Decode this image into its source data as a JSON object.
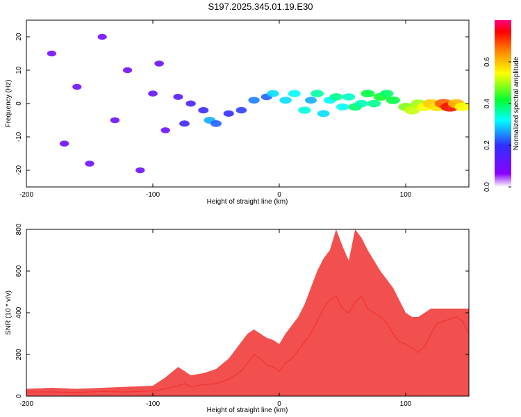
{
  "figure": {
    "title": "S197.2025.345.01.19.E30"
  },
  "colors": {
    "snr_line": "#f03030",
    "axis": "#000000"
  },
  "chart_data": [
    {
      "type": "heatmap",
      "title": "S197.2025.345.01.19.E30",
      "xlabel": "Height of straight line (km)",
      "ylabel": "Frequency (Hz)",
      "xlim": [
        -200,
        150
      ],
      "ylim": [
        -25,
        25
      ],
      "xticks": [
        -200,
        -100,
        0,
        100
      ],
      "yticks": [
        -20,
        -10,
        0,
        10,
        20
      ],
      "xtick_labels": [
        "-200",
        "-100",
        "0",
        "100"
      ],
      "ytick_labels": [
        "-20",
        "-10",
        "0",
        "10",
        "20"
      ],
      "colorbar": {
        "label": "Normalized spectral amplitude",
        "range": [
          0,
          0.8
        ],
        "ticks": [
          0,
          0.2,
          0.4,
          0.6
        ],
        "tick_labels": [
          "0.0",
          "0.2",
          "0.4",
          "0.6"
        ],
        "stops": [
          "#ffffff",
          "#8b00ff",
          "#3030ff",
          "#00ffff",
          "#00ff30",
          "#ffff00",
          "#ff8000",
          "#ff0000",
          "#ff0080"
        ]
      },
      "blobs": [
        {
          "x": -180,
          "y": 15,
          "v": 0.06
        },
        {
          "x": -170,
          "y": -12,
          "v": 0.07
        },
        {
          "x": -160,
          "y": 5,
          "v": 0.06
        },
        {
          "x": -150,
          "y": -18,
          "v": 0.07
        },
        {
          "x": -140,
          "y": 20,
          "v": 0.06
        },
        {
          "x": -130,
          "y": -5,
          "v": 0.07
        },
        {
          "x": -120,
          "y": 10,
          "v": 0.06
        },
        {
          "x": -110,
          "y": -20,
          "v": 0.07
        },
        {
          "x": -100,
          "y": 3,
          "v": 0.08
        },
        {
          "x": -95,
          "y": 12,
          "v": 0.08
        },
        {
          "x": -90,
          "y": -8,
          "v": 0.07
        },
        {
          "x": -80,
          "y": 2,
          "v": 0.1
        },
        {
          "x": -75,
          "y": -6,
          "v": 0.14
        },
        {
          "x": -70,
          "y": 0,
          "v": 0.12
        },
        {
          "x": -60,
          "y": -2,
          "v": 0.15
        },
        {
          "x": -55,
          "y": -5,
          "v": 0.25
        },
        {
          "x": -50,
          "y": -6,
          "v": 0.2
        },
        {
          "x": -40,
          "y": -3,
          "v": 0.16
        },
        {
          "x": -30,
          "y": -2,
          "v": 0.18
        },
        {
          "x": -20,
          "y": 1,
          "v": 0.22
        },
        {
          "x": -10,
          "y": 2,
          "v": 0.2
        },
        {
          "x": -5,
          "y": 3,
          "v": 0.28
        },
        {
          "x": 5,
          "y": 1,
          "v": 0.28
        },
        {
          "x": 12,
          "y": 3,
          "v": 0.3
        },
        {
          "x": 20,
          "y": -2,
          "v": 0.32
        },
        {
          "x": 25,
          "y": 1,
          "v": 0.25
        },
        {
          "x": 30,
          "y": 3,
          "v": 0.35
        },
        {
          "x": 35,
          "y": -3,
          "v": 0.28
        },
        {
          "x": 40,
          "y": 1,
          "v": 0.3
        },
        {
          "x": 45,
          "y": 2,
          "v": 0.36
        },
        {
          "x": 50,
          "y": -1,
          "v": 0.3
        },
        {
          "x": 55,
          "y": 2,
          "v": 0.33
        },
        {
          "x": 60,
          "y": -1,
          "v": 0.38
        },
        {
          "x": 65,
          "y": 0,
          "v": 0.34
        },
        {
          "x": 70,
          "y": 3,
          "v": 0.4
        },
        {
          "x": 75,
          "y": 0,
          "v": 0.36
        },
        {
          "x": 80,
          "y": 2,
          "v": 0.42
        },
        {
          "x": 85,
          "y": 3,
          "v": 0.38
        },
        {
          "x": 90,
          "y": 1,
          "v": 0.4
        },
        {
          "x": 100,
          "y": -1,
          "v": 0.48
        },
        {
          "x": 105,
          "y": -2,
          "v": 0.52
        },
        {
          "x": 110,
          "y": 0,
          "v": 0.5
        },
        {
          "x": 115,
          "y": -1,
          "v": 0.55
        },
        {
          "x": 120,
          "y": 0,
          "v": 0.6
        },
        {
          "x": 125,
          "y": -1,
          "v": 0.58
        },
        {
          "x": 130,
          "y": 0,
          "v": 0.7
        },
        {
          "x": 135,
          "y": -1,
          "v": 0.76
        },
        {
          "x": 140,
          "y": 0,
          "v": 0.62
        },
        {
          "x": 145,
          "y": -1,
          "v": 0.55
        }
      ]
    },
    {
      "type": "line",
      "xlabel": "Height of straight line (km)",
      "ylabel": "SNR (10 * v/v)",
      "xlim": [
        -200,
        150
      ],
      "ylim": [
        0,
        800
      ],
      "xticks": [
        -200,
        -100,
        0,
        100
      ],
      "yticks": [
        0,
        200,
        400,
        600,
        800
      ],
      "xtick_labels": [
        "-200",
        "-100",
        "0",
        "100"
      ],
      "ytick_labels": [
        "0",
        "200",
        "400",
        "600",
        "800"
      ],
      "series": [
        {
          "name": "SNR",
          "x": [
            -200,
            -180,
            -160,
            -140,
            -120,
            -100,
            -90,
            -80,
            -75,
            -70,
            -60,
            -50,
            -40,
            -30,
            -25,
            -20,
            -15,
            -10,
            -5,
            0,
            5,
            10,
            15,
            20,
            25,
            30,
            35,
            40,
            45,
            50,
            55,
            60,
            65,
            70,
            75,
            80,
            85,
            90,
            95,
            100,
            105,
            110,
            115,
            120,
            125,
            130,
            135,
            140,
            145,
            150
          ],
          "values": [
            20,
            20,
            18,
            22,
            20,
            25,
            35,
            50,
            60,
            45,
            55,
            60,
            80,
            120,
            160,
            200,
            180,
            150,
            140,
            120,
            160,
            180,
            220,
            260,
            300,
            360,
            420,
            460,
            480,
            420,
            400,
            450,
            480,
            420,
            400,
            380,
            350,
            300,
            260,
            250,
            230,
            210,
            240,
            300,
            350,
            360,
            370,
            380,
            360,
            300
          ],
          "peak_values": [
            35,
            40,
            35,
            40,
            45,
            50,
            90,
            140,
            120,
            100,
            110,
            130,
            180,
            260,
            300,
            320,
            300,
            280,
            270,
            250,
            300,
            340,
            380,
            440,
            520,
            600,
            660,
            700,
            800,
            720,
            650,
            800,
            760,
            700,
            650,
            600,
            560,
            520,
            460,
            400,
            380,
            380,
            400,
            420,
            420,
            420,
            420,
            420,
            420,
            420
          ],
          "color": "#f03030"
        }
      ]
    }
  ]
}
